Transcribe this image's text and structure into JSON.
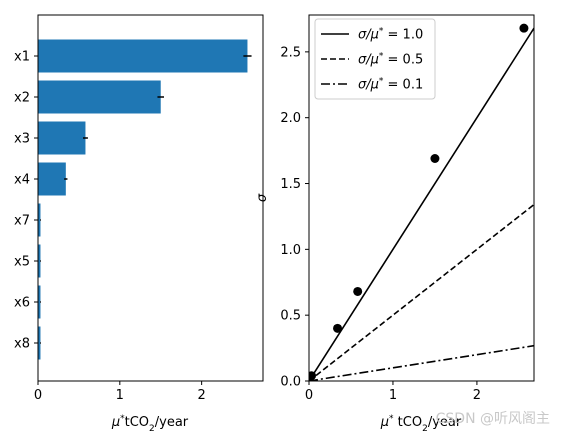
{
  "chart_data": [
    {
      "type": "bar",
      "orientation": "horizontal",
      "categories": [
        "x1",
        "x2",
        "x3",
        "x4",
        "x7",
        "x5",
        "x6",
        "x8"
      ],
      "values": [
        2.56,
        1.5,
        0.58,
        0.34,
        0.03,
        0.03,
        0.03,
        0.03
      ],
      "errors": [
        0.05,
        0.04,
        0.03,
        0.02,
        0.005,
        0.005,
        0.005,
        0.005
      ],
      "bar_color": "#1f77b4",
      "xlabel_parts": [
        "μ",
        "*",
        "tCO",
        "2",
        "/year"
      ],
      "ylabel": "",
      "xlim": [
        0,
        2.75
      ],
      "xticks": [
        0,
        1,
        2
      ],
      "grid": false
    },
    {
      "type": "scatter",
      "points": [
        {
          "x": 0.03,
          "y": 0.04
        },
        {
          "x": 0.34,
          "y": 0.4
        },
        {
          "x": 0.58,
          "y": 0.68
        },
        {
          "x": 1.5,
          "y": 1.69
        },
        {
          "x": 2.56,
          "y": 2.68
        }
      ],
      "point_color": "#000000",
      "lines": [
        {
          "ratio": 1.0,
          "dash": "solid"
        },
        {
          "ratio": 0.5,
          "dash": "dashed"
        },
        {
          "ratio": 0.1,
          "dash": "dashdot"
        }
      ],
      "legend_label_parts": [
        [
          "σ/μ",
          "*",
          " = 1.0"
        ],
        [
          "σ/μ",
          "*",
          " = 0.5"
        ],
        [
          "σ/μ",
          "*",
          " = 0.1"
        ]
      ],
      "legend_position": "top-left",
      "xlabel_parts": [
        "μ",
        "*",
        " tCO",
        "2",
        "/year"
      ],
      "ylabel": "σ",
      "xlim": [
        0,
        2.68
      ],
      "ylim": [
        0,
        2.78
      ],
      "xticks": [
        0,
        1,
        2
      ],
      "yticks": [
        0.0,
        0.5,
        1.0,
        1.5,
        2.0,
        2.5
      ],
      "ytick_labels": [
        "0.0",
        "0.5",
        "1.0",
        "1.5",
        "2.0",
        "2.5"
      ],
      "grid": false
    }
  ],
  "watermark": "CSDN @听风阁主"
}
